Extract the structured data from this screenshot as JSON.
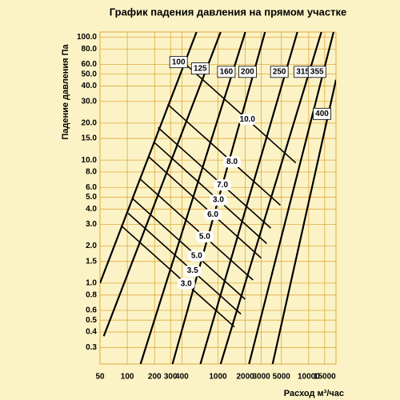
{
  "chart_data": {
    "type": "line",
    "title": "График падения давления на прямом участке",
    "x_label": "Расход м³/час",
    "y_label": "Падение давления Па",
    "x_scale": "log",
    "y_scale": "log",
    "grid": true,
    "grid_color": "#e0a83c",
    "xlim": [
      50,
      20000
    ],
    "ylim": [
      0.22,
      110
    ],
    "xticks": [
      50,
      100,
      200,
      300,
      400,
      1000,
      2000,
      3000,
      5000,
      10000,
      15000
    ],
    "yticks": [
      {
        "value": 100,
        "label": "100.0"
      },
      {
        "value": 80,
        "label": "80.0"
      },
      {
        "value": 60,
        "label": "60.0"
      },
      {
        "value": 50,
        "label": "50.0"
      },
      {
        "value": 40,
        "label": "40.0"
      },
      {
        "value": 30,
        "label": "30.0"
      },
      {
        "value": 20,
        "label": "20.0"
      },
      {
        "value": 15,
        "label": "15.0"
      },
      {
        "value": 10,
        "label": "10.0"
      },
      {
        "value": 8,
        "label": "8.0"
      },
      {
        "value": 6,
        "label": "6.0"
      },
      {
        "value": 5,
        "label": "5.0"
      },
      {
        "value": 4,
        "label": "4.0"
      },
      {
        "value": 3,
        "label": "3.0"
      },
      {
        "value": 2,
        "label": "2.0"
      },
      1.5,
      {
        "value": 1,
        "label": "1.0"
      },
      0.8,
      0.6,
      0.5,
      0.4,
      0.3
    ],
    "series": [
      {
        "name": "100",
        "color": "#000000",
        "x": [
          50,
          580
        ],
        "values": [
          1.0,
          110
        ]
      },
      {
        "name": "125",
        "color": "#000000",
        "x": [
          55,
          1070
        ],
        "values": [
          0.37,
          110
        ]
      },
      {
        "name": "160",
        "color": "#000000",
        "x": [
          140,
          2000
        ],
        "values": [
          0.22,
          110
        ]
      },
      {
        "name": "200",
        "color": "#000000",
        "x": [
          315,
          3300
        ],
        "values": [
          0.22,
          110
        ]
      },
      {
        "name": "250",
        "color": "#000000",
        "x": [
          640,
          7500
        ],
        "values": [
          0.22,
          110
        ]
      },
      {
        "name": "315",
        "color": "#000000",
        "x": [
          1070,
          13800
        ],
        "values": [
          0.22,
          110
        ]
      },
      {
        "name": "355",
        "color": "#000000",
        "x": [
          2200,
          18800
        ],
        "values": [
          0.22,
          110
        ]
      },
      {
        "name": "400",
        "color": "#000000",
        "x": [
          4000,
          20000
        ],
        "values": [
          0.22,
          45
        ]
      }
    ],
    "velocity_lines": [
      {
        "name": "10.0",
        "x": [
          411,
          7200
        ],
        "values": [
          62.8,
          9.5
        ]
      },
      {
        "name": "8.0",
        "x": [
          279,
          4870
        ],
        "values": [
          28.4,
          4.3
        ]
      },
      {
        "name": "7.0",
        "x": [
          218,
          3820
        ],
        "values": [
          18.4,
          2.8
        ]
      },
      {
        "name": "3.0",
        "x": [
          197,
          3440
        ],
        "values": [
          14.0,
          2.1
        ]
      },
      {
        "name": "6.0",
        "x": [
          171,
          2990
        ],
        "values": [
          10.7,
          1.6
        ]
      },
      {
        "name": "5.0",
        "x": [
          139,
          2430
        ],
        "values": [
          7.0,
          1.06
        ]
      },
      {
        "name": "5.0",
        "x": [
          113,
          1990
        ],
        "values": [
          4.9,
          0.74
        ]
      },
      {
        "name": "3.5",
        "x": [
          102,
          1790
        ],
        "values": [
          3.7,
          0.56
        ]
      },
      {
        "name": "3.0",
        "x": [
          87,
          1520
        ],
        "values": [
          2.9,
          0.44
        ]
      }
    ]
  }
}
